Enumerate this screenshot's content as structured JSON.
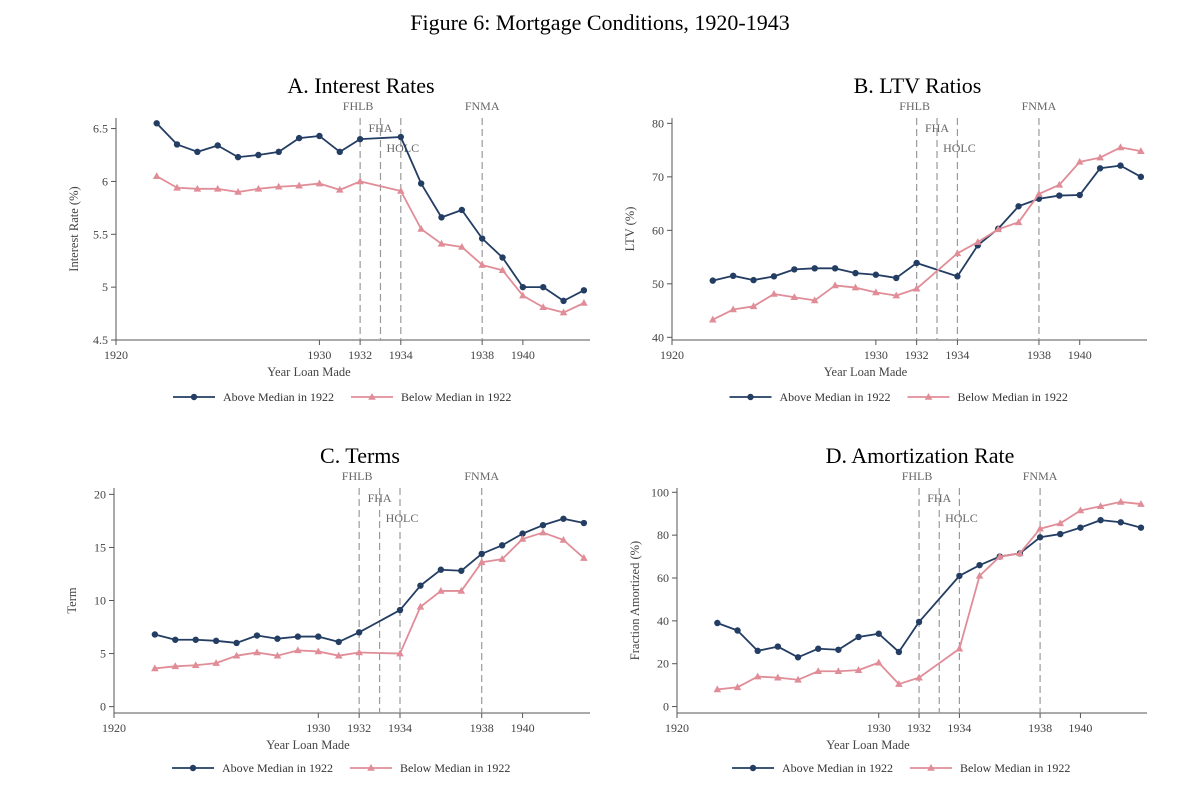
{
  "figure_title": "Figure 6: Mortgage Conditions, 1920-1943",
  "colors": {
    "above": "#233d63",
    "below": "#e08d98",
    "vline": "#9a9a9a",
    "axis": "#555555"
  },
  "chart_data": [
    {
      "type": "line",
      "title": "A. Interest Rates",
      "xlabel": "Year Loan Made",
      "ylabel": "Interest Rate (%)",
      "xlim": [
        1920,
        1943.3
      ],
      "ylim": [
        4.5,
        6.6
      ],
      "xticks": [
        1920,
        1930,
        1932,
        1934,
        1938,
        1940
      ],
      "yticks": [
        4.5,
        5,
        5.5,
        6,
        6.5
      ],
      "ytick_labels": [
        "4.5",
        "5",
        "5.5",
        "6",
        "6.5"
      ],
      "vlines": [
        {
          "x": 1932,
          "label": "FHLB"
        },
        {
          "x": 1933,
          "label": "FHA"
        },
        {
          "x": 1934,
          "label": "HOLC"
        },
        {
          "x": 1938,
          "label": "FNMA"
        }
      ],
      "legend_position": "bottom",
      "series": [
        {
          "name": "Above Median in 1922",
          "marker": "circle",
          "x": [
            1922,
            1923,
            1924,
            1925,
            1926,
            1927,
            1928,
            1929,
            1930,
            1931,
            1932,
            1934,
            1935,
            1936,
            1937,
            1938,
            1939,
            1940,
            1941,
            1942,
            1943
          ],
          "values": [
            6.55,
            6.35,
            6.28,
            6.34,
            6.23,
            6.25,
            6.28,
            6.41,
            6.43,
            6.28,
            6.4,
            6.42,
            5.98,
            5.66,
            5.73,
            5.46,
            5.28,
            5.0,
            5.0,
            4.87,
            4.97
          ]
        },
        {
          "name": "Below Median in 1922",
          "marker": "triangle",
          "x": [
            1922,
            1923,
            1924,
            1925,
            1926,
            1927,
            1928,
            1929,
            1930,
            1931,
            1932,
            1934,
            1935,
            1936,
            1937,
            1938,
            1939,
            1940,
            1941,
            1942,
            1943
          ],
          "values": [
            6.05,
            5.94,
            5.93,
            5.93,
            5.9,
            5.93,
            5.95,
            5.96,
            5.98,
            5.92,
            6.0,
            5.91,
            5.55,
            5.41,
            5.38,
            5.21,
            5.16,
            4.92,
            4.81,
            4.76,
            4.85
          ]
        }
      ]
    },
    {
      "type": "line",
      "title": "B. LTV Ratios",
      "xlabel": "Year Loan Made",
      "ylabel": "LTV (%)",
      "xlim": [
        1920,
        1943.3
      ],
      "ylim": [
        39.5,
        81
      ],
      "xticks": [
        1920,
        1930,
        1932,
        1934,
        1938,
        1940
      ],
      "yticks": [
        40,
        50,
        60,
        70,
        80
      ],
      "ytick_labels": [
        "40",
        "50",
        "60",
        "70",
        "80"
      ],
      "vlines": [
        {
          "x": 1932,
          "label": "FHLB"
        },
        {
          "x": 1933,
          "label": "FHA"
        },
        {
          "x": 1934,
          "label": "HOLC"
        },
        {
          "x": 1938,
          "label": "FNMA"
        }
      ],
      "legend_position": "bottom",
      "series": [
        {
          "name": "Above Median in 1922",
          "marker": "circle",
          "x": [
            1922,
            1923,
            1924,
            1925,
            1926,
            1927,
            1928,
            1929,
            1930,
            1931,
            1932,
            1934,
            1935,
            1936,
            1937,
            1938,
            1939,
            1940,
            1941,
            1942,
            1943
          ],
          "values": [
            50.6,
            51.5,
            50.7,
            51.4,
            52.7,
            52.9,
            52.9,
            52.0,
            51.7,
            51.1,
            53.9,
            51.4,
            57.2,
            60.3,
            64.5,
            65.9,
            66.5,
            66.6,
            71.6,
            72.1,
            70.0
          ]
        },
        {
          "name": "Below Median in 1922",
          "marker": "triangle",
          "x": [
            1922,
            1923,
            1924,
            1925,
            1926,
            1927,
            1928,
            1929,
            1930,
            1931,
            1932,
            1934,
            1935,
            1936,
            1937,
            1938,
            1939,
            1940,
            1941,
            1942,
            1943
          ],
          "values": [
            43.3,
            45.2,
            45.8,
            48.1,
            47.5,
            46.9,
            49.7,
            49.3,
            48.4,
            47.8,
            49.1,
            55.7,
            57.8,
            60.2,
            61.5,
            66.8,
            68.5,
            72.8,
            73.6,
            75.5,
            74.8
          ]
        }
      ]
    },
    {
      "type": "line",
      "title": "C. Terms",
      "xlabel": "Year Loan Made",
      "ylabel": "Term",
      "xlim": [
        1920,
        1943.3
      ],
      "ylim": [
        -0.6,
        20.6
      ],
      "xticks": [
        1920,
        1930,
        1932,
        1934,
        1938,
        1940
      ],
      "yticks": [
        0,
        5,
        10,
        15,
        20
      ],
      "ytick_labels": [
        "0",
        "5",
        "10",
        "15",
        "20"
      ],
      "vlines": [
        {
          "x": 1932,
          "label": "FHLB"
        },
        {
          "x": 1933,
          "label": "FHA"
        },
        {
          "x": 1934,
          "label": "HOLC"
        },
        {
          "x": 1938,
          "label": "FNMA"
        }
      ],
      "legend_position": "bottom",
      "series": [
        {
          "name": "Above Median in 1922",
          "marker": "circle",
          "x": [
            1922,
            1923,
            1924,
            1925,
            1926,
            1927,
            1928,
            1929,
            1930,
            1931,
            1932,
            1934,
            1935,
            1936,
            1937,
            1938,
            1939,
            1940,
            1941,
            1942,
            1943
          ],
          "values": [
            6.8,
            6.3,
            6.3,
            6.2,
            6.0,
            6.7,
            6.4,
            6.6,
            6.6,
            6.1,
            7.0,
            9.1,
            11.4,
            12.9,
            12.8,
            14.4,
            15.2,
            16.3,
            17.1,
            17.7,
            17.3
          ]
        },
        {
          "name": "Below Median in 1922",
          "marker": "triangle",
          "x": [
            1922,
            1923,
            1924,
            1925,
            1926,
            1927,
            1928,
            1929,
            1930,
            1931,
            1932,
            1934,
            1935,
            1936,
            1937,
            1938,
            1939,
            1940,
            1941,
            1942,
            1943
          ],
          "values": [
            3.6,
            3.8,
            3.9,
            4.1,
            4.8,
            5.1,
            4.8,
            5.3,
            5.2,
            4.8,
            5.1,
            5.0,
            9.4,
            10.9,
            10.9,
            13.6,
            13.9,
            15.8,
            16.4,
            15.7,
            14.0
          ]
        }
      ]
    },
    {
      "type": "line",
      "title": "D. Amortization Rate",
      "xlabel": "Year Loan Made",
      "ylabel": "Fraction Amortized (%)",
      "xlim": [
        1920,
        1943.3
      ],
      "ylim": [
        -3,
        102
      ],
      "xticks": [
        1920,
        1930,
        1932,
        1934,
        1938,
        1940
      ],
      "yticks": [
        0,
        20,
        40,
        60,
        80,
        100
      ],
      "ytick_labels": [
        "0",
        "20",
        "40",
        "60",
        "80",
        "100"
      ],
      "vlines": [
        {
          "x": 1932,
          "label": "FHLB"
        },
        {
          "x": 1933,
          "label": "FHA"
        },
        {
          "x": 1934,
          "label": "HOLC"
        },
        {
          "x": 1938,
          "label": "FNMA"
        }
      ],
      "legend_position": "bottom",
      "series": [
        {
          "name": "Above Median in 1922",
          "marker": "circle",
          "x": [
            1922,
            1923,
            1924,
            1925,
            1926,
            1927,
            1928,
            1929,
            1930,
            1931,
            1932,
            1934,
            1935,
            1936,
            1937,
            1938,
            1939,
            1940,
            1941,
            1942,
            1943
          ],
          "values": [
            39.0,
            35.5,
            26.0,
            28.0,
            23.0,
            27.0,
            26.5,
            32.5,
            34.0,
            25.5,
            39.5,
            61.0,
            66.0,
            70.0,
            71.5,
            79.0,
            80.5,
            83.5,
            87.0,
            86.0,
            83.5
          ]
        },
        {
          "name": "Below Median in 1922",
          "marker": "triangle",
          "x": [
            1922,
            1923,
            1924,
            1925,
            1926,
            1927,
            1928,
            1929,
            1930,
            1931,
            1932,
            1934,
            1935,
            1936,
            1937,
            1938,
            1939,
            1940,
            1941,
            1942,
            1943
          ],
          "values": [
            8.0,
            9.0,
            14.0,
            13.5,
            12.5,
            16.5,
            16.5,
            17.0,
            20.5,
            10.5,
            13.5,
            27.0,
            61.0,
            70.0,
            71.5,
            83.0,
            85.5,
            91.5,
            93.5,
            95.5,
            94.5
          ]
        }
      ]
    }
  ]
}
